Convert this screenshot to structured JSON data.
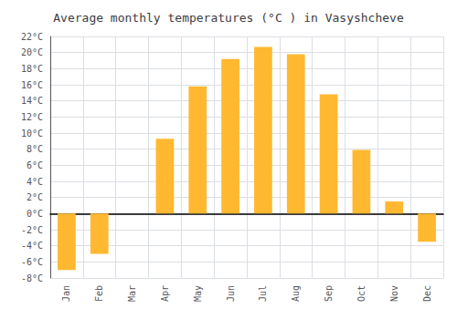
{
  "chart_data": {
    "type": "bar",
    "title": "Average monthly temperatures (°C ) in Vasyshcheve",
    "categories": [
      "Jan",
      "Feb",
      "Mar",
      "Apr",
      "May",
      "Jun",
      "Jul",
      "Aug",
      "Sep",
      "Oct",
      "Nov",
      "Dec"
    ],
    "values": [
      -7,
      -5,
      0,
      9.3,
      15.8,
      19.2,
      20.7,
      19.8,
      14.8,
      7.9,
      1.5,
      -3.5
    ],
    "color": "#FFB830",
    "ylim": [
      -8,
      22
    ],
    "yticks": [
      {
        "value": -8,
        "label": "-8°C"
      },
      {
        "value": -6,
        "label": "-6°C"
      },
      {
        "value": -4,
        "label": "-4°C"
      },
      {
        "value": -2,
        "label": "-2°C"
      },
      {
        "value": 0,
        "label": "0°C"
      },
      {
        "value": 2,
        "label": "2°C"
      },
      {
        "value": 4,
        "label": "4°C"
      },
      {
        "value": 6,
        "label": "6°C"
      },
      {
        "value": 8,
        "label": "8°C"
      },
      {
        "value": 10,
        "label": "10°C"
      },
      {
        "value": 12,
        "label": "12°C"
      },
      {
        "value": 14,
        "label": "14°C"
      },
      {
        "value": 16,
        "label": "16°C"
      },
      {
        "value": 18,
        "label": "18°C"
      },
      {
        "value": 20,
        "label": "20°C"
      },
      {
        "value": 22,
        "label": "22°C"
      }
    ],
    "grid": true
  }
}
